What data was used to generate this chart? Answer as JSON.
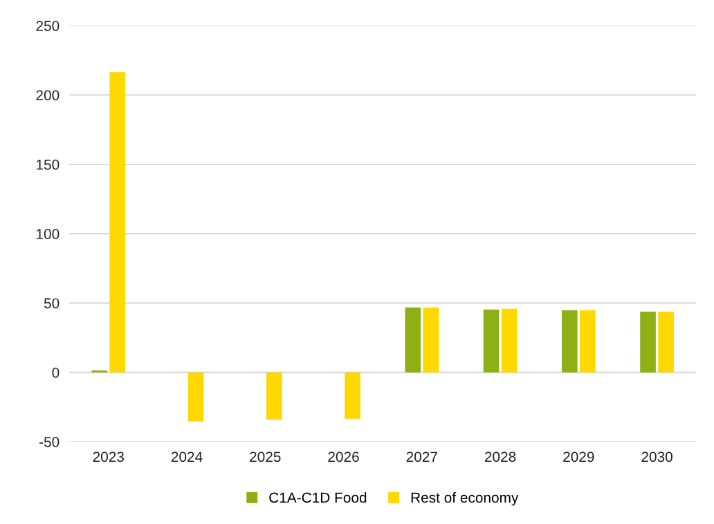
{
  "chart_data": {
    "type": "bar",
    "categories": [
      "2023",
      "2024",
      "2025",
      "2026",
      "2027",
      "2028",
      "2029",
      "2030"
    ],
    "series": [
      {
        "name": "C1A-C1D Food",
        "color": "#8db114",
        "values": [
          1.5,
          0,
          0,
          0,
          46.8,
          45.3,
          44.8,
          43.8
        ]
      },
      {
        "name": "Rest of economy",
        "color": "#ffd800",
        "values": [
          216.6,
          -35.4,
          -34,
          -33.4,
          46.8,
          45.8,
          44.8,
          43.8
        ]
      }
    ],
    "ylim": [
      -50,
      250
    ],
    "yticks": [
      -50,
      0,
      50,
      100,
      150,
      200,
      250
    ],
    "grid": "y",
    "legend": "bottom"
  }
}
